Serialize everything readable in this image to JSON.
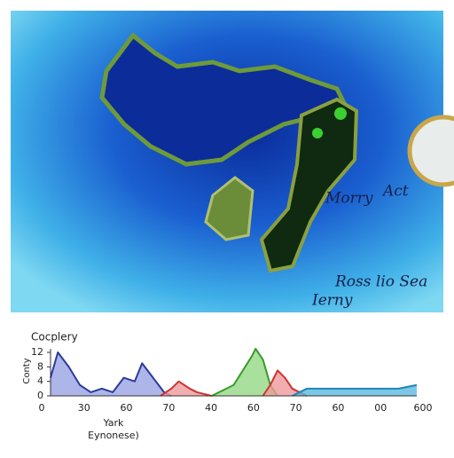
{
  "map": {
    "labels": [
      "Morry",
      "Act",
      "Ross lio Sea",
      "Ierny"
    ]
  },
  "chart_data": {
    "type": "area",
    "title": "Cocplery",
    "y_label": "Conty",
    "x_label": [
      "Yark",
      "Eynonese)"
    ],
    "xlim": [
      0,
      100
    ],
    "ylim": [
      0,
      12
    ],
    "yticks": [
      0,
      4,
      8,
      12
    ],
    "xtick_labels": [
      "0",
      "30",
      "60",
      "70",
      "40",
      "60",
      "70",
      "60",
      "00",
      "600"
    ],
    "series": [
      {
        "color": "#2a3c9a",
        "fill": "#9aa3e4",
        "x": [
          0,
          2,
          5,
          8,
          11,
          14,
          17,
          20,
          23,
          25,
          28,
          31,
          33
        ],
        "values": [
          5,
          12,
          8,
          3,
          1,
          2,
          1,
          5,
          4,
          9,
          5,
          1,
          0
        ]
      },
      {
        "color": "#cc3333",
        "fill": "#ef9a9a",
        "x": [
          30,
          33,
          35,
          38,
          40,
          44
        ],
        "values": [
          0,
          2,
          4,
          2,
          1,
          0
        ]
      },
      {
        "color": "#3a9a2a",
        "fill": "#94d884",
        "x": [
          44,
          50,
          55,
          56,
          58,
          60,
          62
        ],
        "values": [
          0,
          3,
          11,
          13,
          10,
          3,
          0
        ]
      },
      {
        "color": "#cc3333",
        "fill": "#ef9a9a",
        "x": [
          58,
          60,
          62,
          64,
          66,
          70
        ],
        "values": [
          0,
          3,
          7,
          5,
          2,
          0
        ]
      },
      {
        "color": "#1f86b8",
        "fill": "#5bb8e0",
        "x": [
          66,
          70,
          80,
          90,
          95,
          100
        ],
        "values": [
          0,
          2,
          2,
          2,
          2,
          3
        ]
      }
    ]
  }
}
